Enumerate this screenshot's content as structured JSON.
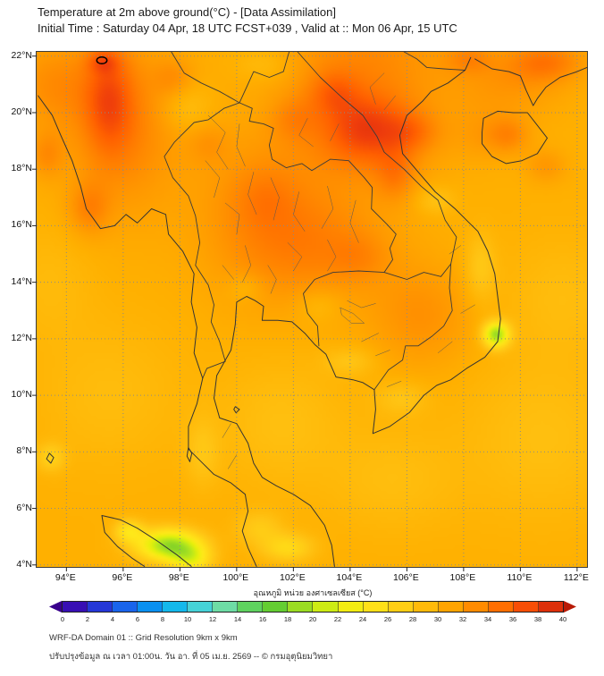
{
  "header": {
    "title": "Temperature at 2m above ground(°C) - [Data Assimilation]",
    "subtitle": "Initial Time : Saturday 04 Apr, 18 UTC FCST+039 , Valid at :: Mon 06 Apr, 15 UTC"
  },
  "axes": {
    "lat_labels": [
      "22°N",
      "20°N",
      "18°N",
      "16°N",
      "14°N",
      "12°N",
      "10°N",
      "8°N",
      "6°N",
      "4°N"
    ],
    "lon_labels": [
      "94°E",
      "96°E",
      "98°E",
      "100°E",
      "102°E",
      "104°E",
      "106°E",
      "108°E",
      "110°E",
      "112°E"
    ]
  },
  "colorbar": {
    "label": "อุณหภูมิ หน่วย องศาเซลเซียส (°C)",
    "tick_values": [
      0,
      2,
      4,
      6,
      8,
      10,
      12,
      14,
      16,
      18,
      20,
      22,
      24,
      26,
      28,
      30,
      32,
      34,
      36,
      38,
      40
    ],
    "under_arrow_color": "#38008c",
    "over_arrow_color": "#b81a06"
  },
  "footer": {
    "line1": "WRF-DA Domain 01 :: Grid Resolution 9km x 9km",
    "line2": "ปรับปรุงข้อมูล ณ เวลา 01:00น. วัน อา. ที่ 05 เม.ย. 2569 -- © กรมอุตุนิยมวิทยา"
  },
  "chart_data": {
    "type": "heatmap",
    "title": "Temperature at 2m above ground (°C), WRF-DA Domain 01",
    "unit": "°C",
    "lon_range": [
      92.95,
      112.35
    ],
    "lat_range": [
      3.93,
      22.15
    ],
    "lon_ticks": [
      94,
      96,
      98,
      100,
      102,
      104,
      106,
      108,
      110,
      112
    ],
    "lat_ticks": [
      22,
      20,
      18,
      16,
      14,
      12,
      10,
      8,
      6,
      4
    ],
    "scale_min": 0,
    "scale_max": 40,
    "base_temp_c": 30,
    "colormap": [
      [
        0,
        "#4400a0"
      ],
      [
        2,
        "#2c1ec8"
      ],
      [
        4,
        "#1e50e6"
      ],
      [
        6,
        "#1478f0"
      ],
      [
        8,
        "#00a8f0"
      ],
      [
        10,
        "#28c8e6"
      ],
      [
        12,
        "#64dcc8"
      ],
      [
        14,
        "#78dc82"
      ],
      [
        16,
        "#46c83c"
      ],
      [
        18,
        "#82d228"
      ],
      [
        20,
        "#b4e61e"
      ],
      [
        22,
        "#e6f00a"
      ],
      [
        24,
        "#ffe81a"
      ],
      [
        26,
        "#ffd816"
      ],
      [
        28,
        "#ffc414"
      ],
      [
        30,
        "#ffb000"
      ],
      [
        32,
        "#ff9800"
      ],
      [
        34,
        "#ff7d00"
      ],
      [
        36,
        "#ff5f00"
      ],
      [
        38,
        "#ee3c0c"
      ],
      [
        40,
        "#cc2208"
      ]
    ],
    "features": [
      [
        96.0,
        19.5,
        2.0,
        3.0,
        3.5
      ],
      [
        100.8,
        16.5,
        2.2,
        2.8,
        2.8
      ],
      [
        103.0,
        15.3,
        2.5,
        2.0,
        3.0
      ],
      [
        104.5,
        19.5,
        2.5,
        2.0,
        3.5
      ],
      [
        106.5,
        12.8,
        1.8,
        1.8,
        2.5
      ],
      [
        104.5,
        22.2,
        3.0,
        1.5,
        2.5
      ],
      [
        109.5,
        21.0,
        2.0,
        1.2,
        2.0
      ],
      [
        93.5,
        21.0,
        1.5,
        1.5,
        2.5
      ],
      [
        108.8,
        19.2,
        1.2,
        0.9,
        1.5
      ],
      [
        95.5,
        20.5,
        0.85,
        1.9,
        4.5
      ],
      [
        95.3,
        21.8,
        0.55,
        0.4,
        3.0
      ],
      [
        94.8,
        16.6,
        0.7,
        0.9,
        3.0
      ],
      [
        104.6,
        19.4,
        1.5,
        1.2,
        4.5
      ],
      [
        103.4,
        20.7,
        0.9,
        0.8,
        3.0
      ],
      [
        106.2,
        19.3,
        0.9,
        0.7,
        2.5
      ],
      [
        105.6,
        17.8,
        0.7,
        0.9,
        2.8
      ],
      [
        110.9,
        21.8,
        1.3,
        0.7,
        4.0
      ],
      [
        108.2,
        21.9,
        0.8,
        0.5,
        2.5
      ],
      [
        101.0,
        17.0,
        1.0,
        1.0,
        1.2
      ],
      [
        99.0,
        18.9,
        0.7,
        0.7,
        1.5
      ],
      [
        104.3,
        14.9,
        1.0,
        0.8,
        1.5
      ],
      [
        102.0,
        19.8,
        0.8,
        0.8,
        2.0
      ],
      [
        97.8,
        21.2,
        0.7,
        0.7,
        2.0
      ],
      [
        93.3,
        18.5,
        0.6,
        0.8,
        2.5
      ],
      [
        109.6,
        19.2,
        0.7,
        0.6,
        2.5
      ],
      [
        110.9,
        18.1,
        0.7,
        0.6,
        2.0
      ],
      [
        109.15,
        12.15,
        0.45,
        0.45,
        -11
      ],
      [
        97.6,
        4.7,
        1.1,
        0.55,
        -11
      ],
      [
        96.2,
        5.2,
        0.5,
        0.4,
        -5
      ],
      [
        98.4,
        4.2,
        0.7,
        0.5,
        -6
      ],
      [
        93.45,
        7.8,
        0.5,
        0.5,
        -3
      ],
      [
        101.6,
        9.0,
        2.2,
        2.2,
        -1.5
      ],
      [
        95.5,
        10.0,
        2.5,
        2.5,
        -1.2
      ],
      [
        110.8,
        8.5,
        2.8,
        2.8,
        -1.5
      ],
      [
        111.5,
        13.5,
        2.0,
        2.0,
        -1.2
      ],
      [
        93.4,
        14.0,
        1.5,
        2.0,
        -1.0
      ],
      [
        105.5,
        7.0,
        2.2,
        1.8,
        -1.3
      ],
      [
        100.3,
        13.8,
        0.6,
        0.5,
        -1.5
      ],
      [
        107.0,
        16.9,
        0.7,
        0.5,
        -2.0
      ],
      [
        108.6,
        14.5,
        0.55,
        1.2,
        -2.5
      ],
      [
        104.0,
        11.2,
        0.9,
        0.5,
        -2.0
      ],
      [
        105.8,
        9.9,
        0.9,
        0.6,
        -2.0
      ],
      [
        98.8,
        8.0,
        0.6,
        1.2,
        -2.0
      ],
      [
        102.9,
        13.2,
        0.8,
        0.6,
        -1.5
      ],
      [
        101.8,
        4.6,
        0.9,
        0.5,
        -4.0
      ],
      [
        101.0,
        21.7,
        1.0,
        0.6,
        -1.5
      ],
      [
        98.2,
        20.2,
        0.9,
        0.9,
        -2.0
      ],
      [
        100.8,
        5.3,
        0.8,
        0.6,
        -2.5
      ]
    ],
    "annotations": [
      {
        "type": "contour-circle",
        "lon": 95.25,
        "lat": 21.85,
        "rx_deg": 0.18,
        "ry_deg": 0.12
      }
    ]
  }
}
